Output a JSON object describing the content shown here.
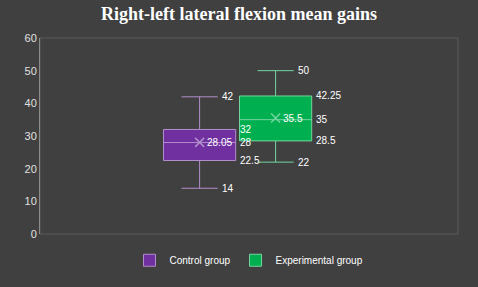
{
  "chart_data": {
    "type": "box",
    "title": "Right-left lateral flexion mean gains",
    "series": [
      {
        "name": "Control group",
        "color": "#7030a0",
        "min": 14,
        "q1": 22.5,
        "median": 28,
        "q3": 32,
        "max": 42,
        "mean": 28.05
      },
      {
        "name": "Experimental group",
        "color": "#00b050",
        "min": 22,
        "q1": 28.5,
        "median": 35,
        "q3": 42.25,
        "max": 50,
        "mean": 35.5
      }
    ],
    "ylim": [
      0,
      60
    ],
    "yticks": [
      0,
      10,
      20,
      30,
      40,
      50,
      60
    ],
    "grid": false,
    "legend": "bottom",
    "data_labels": true,
    "tick_labels": "y",
    "marker": "x"
  }
}
